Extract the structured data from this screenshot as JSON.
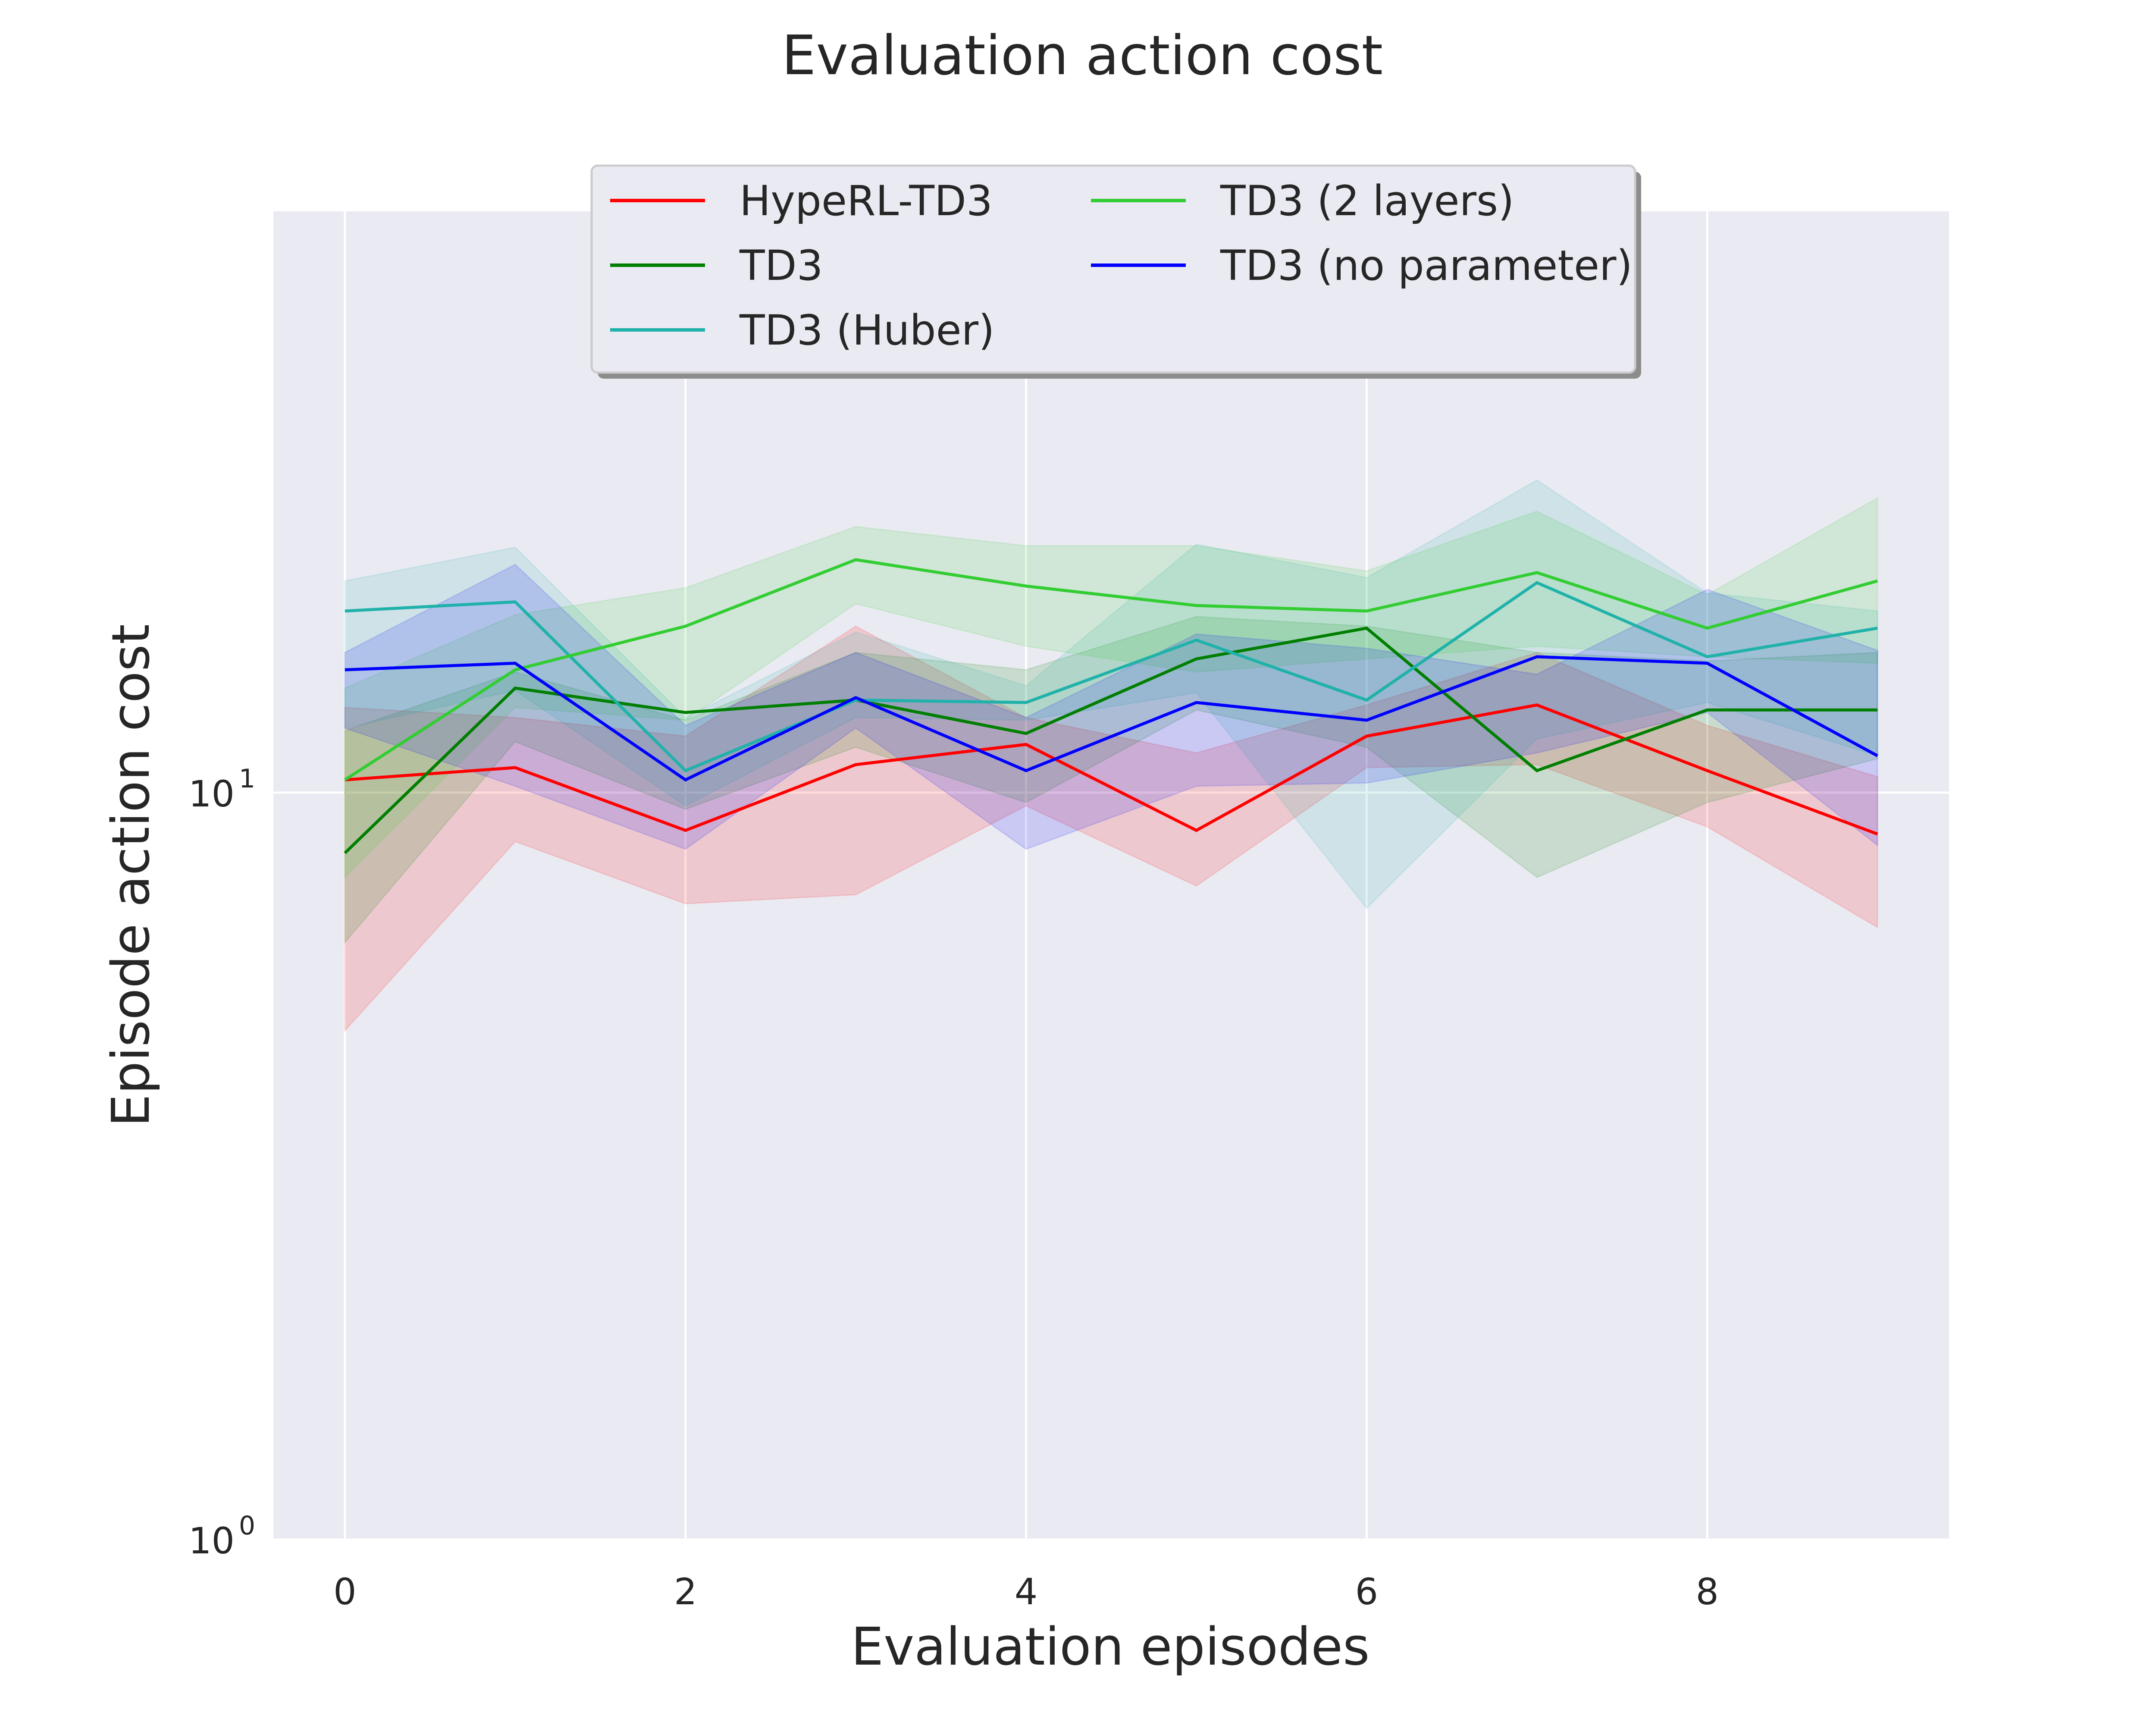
{
  "chart_data": {
    "type": "line",
    "title": "Evaluation action cost",
    "xlabel": "Evaluation episodes",
    "ylabel": "Episode action cost",
    "yscale": "log",
    "xlim": [
      -0.42,
      9.42
    ],
    "ylim": [
      1,
      60
    ],
    "grid": true,
    "legend_location": "top-center",
    "x": [
      0,
      1,
      2,
      3,
      4,
      5,
      6,
      7,
      8,
      9
    ],
    "x_ticks": [
      {
        "value": 0,
        "label": "0"
      },
      {
        "value": 2,
        "label": "2"
      },
      {
        "value": 4,
        "label": "4"
      },
      {
        "value": 6,
        "label": "6"
      },
      {
        "value": 8,
        "label": "8"
      }
    ],
    "y_ticks": [
      {
        "value": 1,
        "base": "10",
        "exp": "0"
      },
      {
        "value": 10,
        "base": "10",
        "exp": "1"
      }
    ],
    "series": [
      {
        "name": "HypeRL-TD3",
        "color": "#ff0000",
        "values": [
          10.4,
          10.8,
          8.9,
          10.9,
          11.6,
          8.9,
          11.9,
          13.1,
          10.7,
          8.8
        ],
        "lower": [
          4.8,
          8.6,
          7.1,
          7.3,
          9.6,
          7.5,
          10.8,
          10.9,
          9.0,
          6.6
        ],
        "upper": [
          13.0,
          12.6,
          11.9,
          16.7,
          12.6,
          11.3,
          13.1,
          15.4,
          12.3,
          10.5
        ]
      },
      {
        "name": "TD3",
        "color": "#007f00",
        "values": [
          8.3,
          13.8,
          12.8,
          13.3,
          12.0,
          15.1,
          16.6,
          10.7,
          12.9,
          12.9
        ],
        "lower": [
          6.3,
          11.7,
          9.5,
          11.5,
          9.7,
          12.9,
          11.5,
          7.7,
          9.7,
          11.1
        ],
        "upper": [
          12.1,
          14.5,
          12.5,
          15.4,
          14.6,
          17.2,
          16.7,
          15.4,
          15.0,
          15.4
        ]
      },
      {
        "name": "TD3 (Huber)",
        "color": "#20b2aa",
        "values": [
          17.5,
          18.0,
          10.7,
          13.3,
          13.2,
          16.0,
          13.3,
          19.1,
          15.2,
          16.6
        ],
        "lower": [
          12.2,
          13.7,
          9.6,
          12.6,
          12.5,
          13.6,
          7.0,
          11.8,
          13.2,
          11.2
        ],
        "upper": [
          19.2,
          21.3,
          12.6,
          16.4,
          13.9,
          21.5,
          19.4,
          26.2,
          18.5,
          17.5
        ]
      },
      {
        "name": "TD3 (2 layers)",
        "color": "#32cd32",
        "values": [
          10.4,
          14.6,
          16.7,
          20.5,
          18.9,
          17.8,
          17.5,
          19.7,
          16.6,
          19.2
        ],
        "lower": [
          7.7,
          13.0,
          12.5,
          17.9,
          15.7,
          14.5,
          15.1,
          15.7,
          15.2,
          14.9
        ],
        "upper": [
          13.8,
          17.3,
          18.8,
          22.7,
          21.4,
          21.4,
          19.8,
          23.8,
          18.4,
          24.8
        ]
      },
      {
        "name": "TD3 (no parameter)",
        "color": "#0000ff",
        "values": [
          14.6,
          14.9,
          10.4,
          13.4,
          10.7,
          13.2,
          12.5,
          15.2,
          14.9,
          11.2
        ],
        "lower": [
          12.2,
          10.2,
          8.4,
          12.2,
          8.4,
          10.2,
          10.3,
          11.3,
          12.8,
          8.5
        ],
        "upper": [
          15.4,
          20.2,
          12.3,
          15.4,
          12.6,
          16.3,
          15.6,
          14.4,
          18.7,
          15.5
        ]
      }
    ]
  }
}
